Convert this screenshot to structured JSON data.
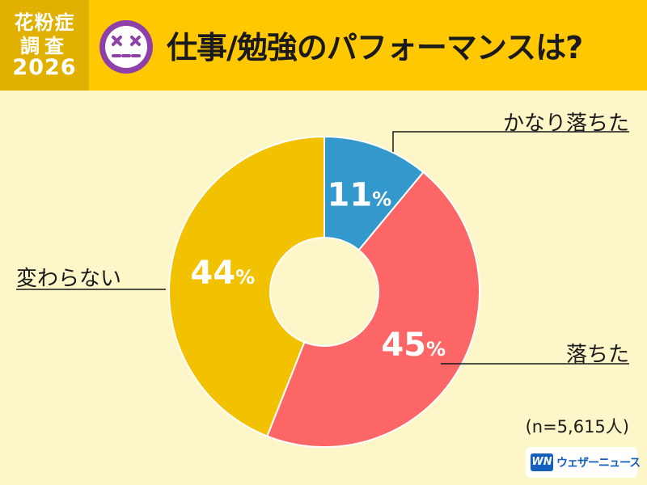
{
  "header": {
    "badge_line1": "花粉症",
    "badge_line2": "調査",
    "badge_year": "2026",
    "title": "仕事/勉強のパフォーマンスは?",
    "face_icon": "dizzy-face-icon"
  },
  "colors": {
    "header_bg": "#ffc800",
    "badge_bg": "#e0b100",
    "page_bg": "#fdf6c8",
    "face": "#8e3fa8"
  },
  "chart_data": {
    "type": "pie",
    "donut": true,
    "slices": [
      {
        "label": "かなり落ちた",
        "value": 11,
        "display": "11",
        "color": "#3399cc"
      },
      {
        "label": "落ちた",
        "value": 45,
        "display": "45",
        "color": "#fd6666"
      },
      {
        "label": "変わらない",
        "value": 44,
        "display": "44",
        "color": "#f2c200"
      }
    ],
    "unit": "%",
    "legend": "none",
    "grid": false
  },
  "sample_size": "(n=5,615人)",
  "logo": {
    "mark": "WN",
    "text": "ウェザーニュース"
  }
}
